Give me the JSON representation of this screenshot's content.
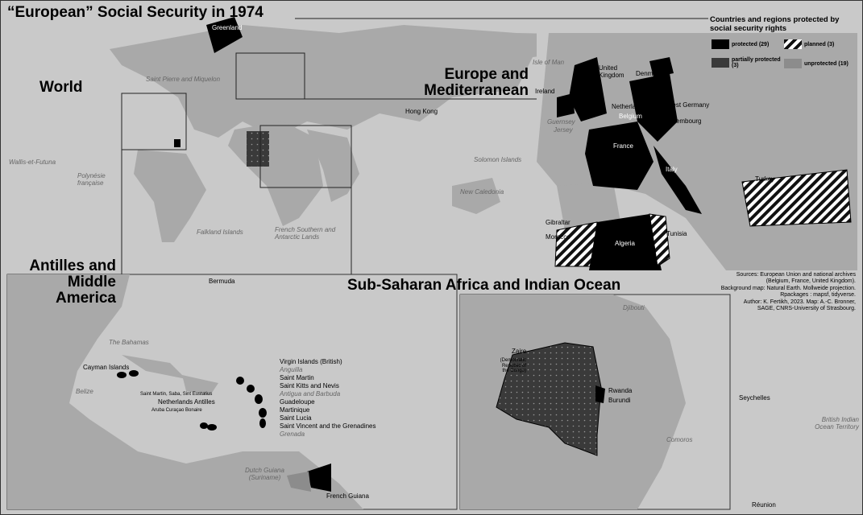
{
  "title": "“European” Social Security in 1974",
  "legend": {
    "heading": "Countries and regions protected by social security rights",
    "items": [
      {
        "label": "protected (29)",
        "color": "#000000"
      },
      {
        "label": "planned (3)",
        "color": "hatched"
      },
      {
        "label": "partially protected (3)",
        "color": "#3a3a3a"
      },
      {
        "label": "unprotected (19)",
        "color": "#8c8c8c"
      }
    ]
  },
  "insets": {
    "world": "World",
    "europe": "Europe and Mediterranean",
    "antilles": "Antilles and Middle America",
    "africa": "Sub-Saharan Africa and Indian Ocean"
  },
  "world_labels": [
    "Greenland",
    "Saint Pierre and Miquelon",
    "Hong Kong",
    "Wallis-et-Futuna",
    "Polynésie française",
    "Solomon Islands",
    "New Caledonia",
    "Falkland Islands",
    "French Southern and Antarctic Lands",
    "Bermuda"
  ],
  "europe_labels": [
    "Isle of Man",
    "United Kingdom",
    "Denmark",
    "Ireland",
    "Netherlands",
    "West Germany",
    "Belgium",
    "Guernsey",
    "Jersey",
    "Luxembourg",
    "France",
    "Italy",
    "Turkey",
    "Gibraltar",
    "Morocco",
    "Algeria",
    "Tunisia"
  ],
  "antilles_labels": [
    "The Bahamas",
    "Cayman Islands",
    "Belize",
    "Virgin Islands (British)",
    "Anguilla",
    "Saint Martin",
    "Saint Kitts and Nevis",
    "Antigua and Barbuda",
    "Guadeloupe",
    "Martinique",
    "Saint Lucia",
    "Saint Vincent and the Grenadines",
    "Grenada",
    "Saint Martin, Saba, Sint Eustatius",
    "Netherlands Antilles",
    "Aruba  Curaçao Bonaire",
    "Dutch Guiana (Suriname)",
    "French Guiana"
  ],
  "africa_labels": [
    "Djibouti",
    "Zaire",
    "(Democratic Republic of the Congo)",
    "Rwanda",
    "Burundi",
    "Seychelles",
    "British Indian Ocean Territory",
    "Comoros",
    "Réunion"
  ],
  "sources": [
    "Sources: European Union and national archives",
    "(Belgium, France, United Kingdom).",
    "Background map: Natural Earth. Mollweide projection.",
    "Rpackages : mapsf, tidyverse.",
    "Author: K. Fertikh, 2023.  Map: A.-C. Bronner,",
    "SAGE, CNRS-University of Strasbourg."
  ]
}
